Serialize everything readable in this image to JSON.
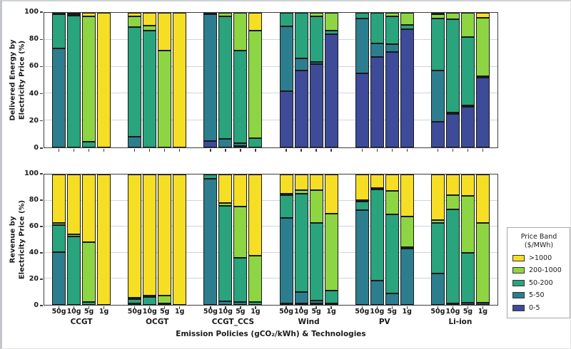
{
  "figure": {
    "x_axis_title": "Emission Policies (gCO₂/kWh) & Technologies",
    "y_ticks": [
      0,
      20,
      40,
      60,
      80,
      100
    ],
    "x_tick_labels": [
      "50g",
      "10g",
      "5g",
      "1g"
    ],
    "group_labels": [
      "CCGT",
      "OCGT",
      "CCGT_CCS",
      "Wind",
      "PV",
      "Li-ion"
    ]
  },
  "legend": {
    "title_line1": "Price Band",
    "title_line2": "($/MWh)",
    "entries": [
      {
        "label": ">1000",
        "color": "#f6de25"
      },
      {
        "label": "200-1000",
        "color": "#8ed543"
      },
      {
        "label": "50-200",
        "color": "#29a47d"
      },
      {
        "label": "5-50",
        "color": "#2c7e8e"
      },
      {
        "label": "0-5",
        "color": "#3e4b99"
      }
    ]
  },
  "chart_data": [
    {
      "type": "bar",
      "stacked": true,
      "units": "percent",
      "ylabel_lines": [
        "Delivered Energy by",
        "Electricity Price (%)"
      ],
      "ylim": [
        0,
        100
      ],
      "grid": true,
      "bands_bottom_to_top": [
        "0-5",
        "5-50",
        "50-200",
        "200-1000",
        ">1000"
      ],
      "band_colors": [
        "#3e4b99",
        "#2c7e8e",
        "#29a47d",
        "#8ed543",
        "#f6de25"
      ],
      "groups": [
        {
          "name": "CCGT",
          "bars": [
            {
              "label": "50g",
              "values": [
                0,
                74,
                25.5,
                0.5,
                0
              ]
            },
            {
              "label": "10g",
              "values": [
                0,
                0,
                99,
                0.5,
                0.5
              ]
            },
            {
              "label": "5g",
              "values": [
                0,
                0,
                4,
                93.5,
                2.5
              ]
            },
            {
              "label": "1g",
              "values": [
                0,
                0,
                0,
                0,
                100
              ]
            }
          ]
        },
        {
          "name": "OCGT",
          "bars": [
            {
              "label": "50g",
              "values": [
                0,
                8,
                81.5,
                8,
                2.5
              ]
            },
            {
              "label": "10g",
              "values": [
                0,
                0,
                87,
                3.5,
                9.5
              ]
            },
            {
              "label": "5g",
              "values": [
                0,
                0,
                0,
                72,
                28
              ]
            },
            {
              "label": "1g",
              "values": [
                0,
                0,
                0,
                0,
                100
              ]
            }
          ]
        },
        {
          "name": "CCGT_CCS",
          "bars": [
            {
              "label": "50g",
              "values": [
                5,
                94,
                1,
                0,
                0
              ]
            },
            {
              "label": "10g",
              "values": [
                0,
                6.5,
                91,
                2.5,
                0
              ]
            },
            {
              "label": "5g",
              "values": [
                1,
                2,
                69,
                28,
                0
              ]
            },
            {
              "label": "1g",
              "values": [
                0,
                0,
                7,
                80,
                13
              ]
            }
          ]
        },
        {
          "name": "Wind",
          "bars": [
            {
              "label": "50g",
              "values": [
                42,
                48,
                10,
                0,
                0
              ]
            },
            {
              "label": "10g",
              "values": [
                57,
                9,
                34,
                0,
                0
              ]
            },
            {
              "label": "5g",
              "values": [
                62,
                1.5,
                34,
                2.5,
                0
              ]
            },
            {
              "label": "1g",
              "values": [
                84,
                0,
                3,
                13,
                0
              ]
            }
          ]
        },
        {
          "name": "PV",
          "bars": [
            {
              "label": "50g",
              "values": [
                55,
                41,
                4,
                0,
                0
              ]
            },
            {
              "label": "10g",
              "values": [
                67,
                10,
                23,
                0,
                0
              ]
            },
            {
              "label": "5g",
              "values": [
                71,
                5.5,
                21,
                2.5,
                0
              ]
            },
            {
              "label": "1g",
              "values": [
                88,
                0,
                3,
                9,
                0
              ]
            }
          ]
        },
        {
          "name": "Li-ion",
          "bars": [
            {
              "label": "50g",
              "values": [
                19,
                38.5,
                39,
                3,
                0.5
              ]
            },
            {
              "label": "10g",
              "values": [
                25,
                1,
                69,
                5,
                0
              ]
            },
            {
              "label": "5g",
              "values": [
                30,
                1,
                51,
                18,
                0
              ]
            },
            {
              "label": "1g",
              "values": [
                52,
                0,
                1,
                43.5,
                3.5
              ]
            }
          ]
        }
      ]
    },
    {
      "type": "bar",
      "stacked": true,
      "units": "percent",
      "ylabel_lines": [
        "Revenue by",
        "Electricity Price (%)"
      ],
      "ylim": [
        0,
        100
      ],
      "grid": true,
      "bands_bottom_to_top": [
        "0-5",
        "5-50",
        "50-200",
        "200-1000",
        ">1000"
      ],
      "band_colors": [
        "#3e4b99",
        "#2c7e8e",
        "#29a47d",
        "#8ed543",
        "#f6de25"
      ],
      "groups": [
        {
          "name": "CCGT",
          "bars": [
            {
              "label": "50g",
              "values": [
                0,
                40.5,
                20.5,
                2,
                37
              ]
            },
            {
              "label": "10g",
              "values": [
                0,
                0,
                52.5,
                1.5,
                46
              ]
            },
            {
              "label": "5g",
              "values": [
                0,
                0,
                2,
                46,
                52
              ]
            },
            {
              "label": "1g",
              "values": [
                0,
                0,
                0,
                0,
                100
              ]
            }
          ]
        },
        {
          "name": "OCGT",
          "bars": [
            {
              "label": "50g",
              "values": [
                0,
                1,
                3.5,
                1,
                94.5
              ]
            },
            {
              "label": "10g",
              "values": [
                0,
                0,
                6,
                1,
                93
              ]
            },
            {
              "label": "5g",
              "values": [
                0,
                0,
                1,
                6,
                93
              ]
            },
            {
              "label": "1g",
              "values": [
                0,
                0,
                0,
                0,
                100
              ]
            }
          ]
        },
        {
          "name": "CCGT_CCS",
          "bars": [
            {
              "label": "50g",
              "values": [
                0,
                96.5,
                3.5,
                0,
                0
              ]
            },
            {
              "label": "10g",
              "values": [
                0,
                2.5,
                73.5,
                2,
                22
              ]
            },
            {
              "label": "5g",
              "values": [
                0,
                2,
                34,
                39.5,
                24.5
              ]
            },
            {
              "label": "1g",
              "values": [
                0,
                0,
                2,
                35.5,
                62.5
              ]
            }
          ]
        },
        {
          "name": "Wind",
          "bars": [
            {
              "label": "50g",
              "values": [
                1,
                65.5,
                17.5,
                1,
                15
              ]
            },
            {
              "label": "10g",
              "values": [
                1,
                8.5,
                76,
                2.5,
                12
              ]
            },
            {
              "label": "5g",
              "values": [
                1,
                2,
                60,
                25,
                12
              ]
            },
            {
              "label": "1g",
              "values": [
                1,
                0,
                10,
                59,
                30
              ]
            }
          ]
        },
        {
          "name": "PV",
          "bars": [
            {
              "label": "50g",
              "values": [
                0,
                73,
                6.5,
                0.5,
                20
              ]
            },
            {
              "label": "10g",
              "values": [
                0,
                18.5,
                70.5,
                0.5,
                10.5
              ]
            },
            {
              "label": "5g",
              "values": [
                0,
                8.5,
                61,
                18,
                12.5
              ]
            },
            {
              "label": "1g",
              "values": [
                0,
                43,
                1,
                23.5,
                32.5
              ]
            }
          ]
        },
        {
          "name": "Li-ion",
          "bars": [
            {
              "label": "50g",
              "values": [
                0,
                24,
                39,
                2,
                35
              ]
            },
            {
              "label": "10g",
              "values": [
                1,
                0,
                72,
                11,
                16
              ]
            },
            {
              "label": "5g",
              "values": [
                1.5,
                0,
                38.5,
                43.5,
                16.5
              ]
            },
            {
              "label": "1g",
              "values": [
                1.5,
                0,
                0,
                61.5,
                37
              ]
            }
          ]
        }
      ]
    }
  ]
}
